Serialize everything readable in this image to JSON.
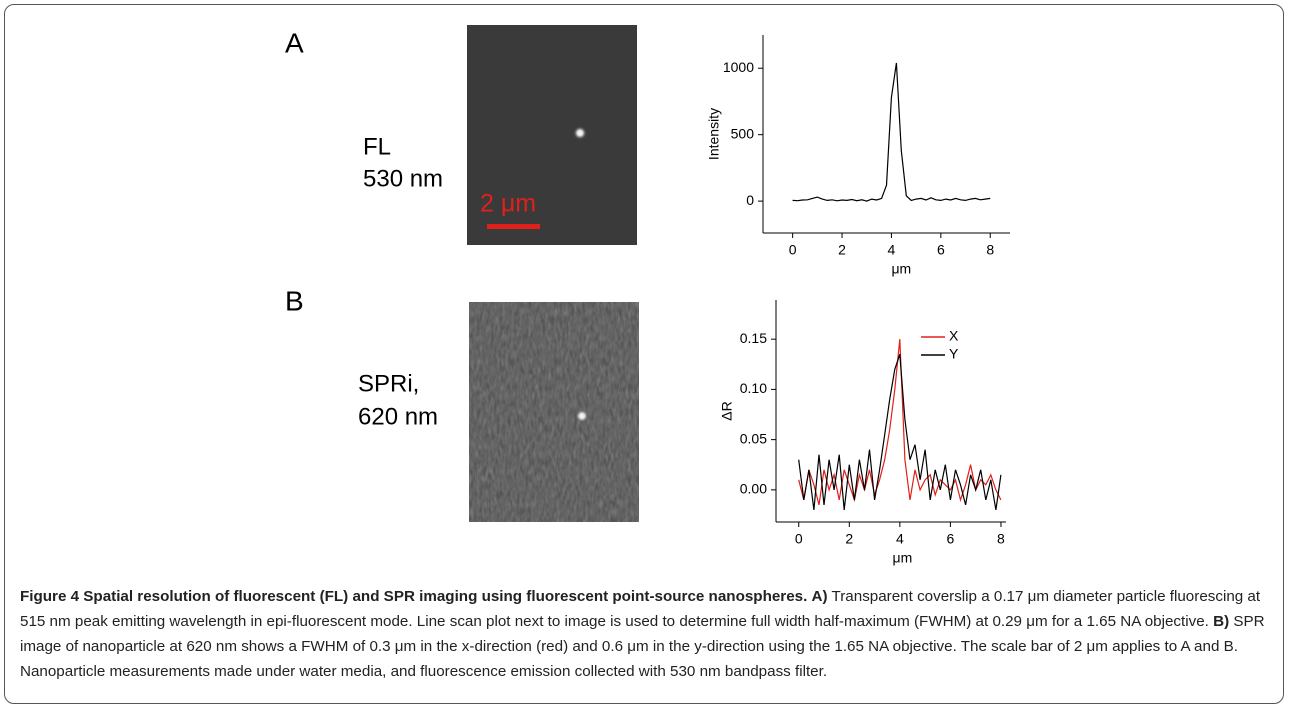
{
  "panels": [
    {
      "label": "A",
      "image_caption": [
        "FL",
        "530 nm"
      ],
      "scale_bar": "2 μm"
    },
    {
      "label": "B",
      "image_caption": [
        "SPRi,",
        "620 nm"
      ]
    }
  ],
  "chart_data": [
    {
      "type": "line",
      "color": "#000000",
      "xlabel": "μm",
      "ylabel": "Intensity",
      "x": [
        0,
        0.2,
        0.4,
        0.6,
        0.8,
        1.0,
        1.2,
        1.4,
        1.6,
        1.8,
        2.0,
        2.2,
        2.4,
        2.6,
        2.8,
        3.0,
        3.2,
        3.4,
        3.6,
        3.8,
        4.0,
        4.2,
        4.4,
        4.6,
        4.8,
        5.0,
        5.2,
        5.4,
        5.6,
        5.8,
        6.0,
        6.2,
        6.4,
        6.6,
        6.8,
        7.0,
        7.2,
        7.4,
        7.6,
        7.8,
        8.0
      ],
      "values": [
        5,
        3,
        8,
        10,
        20,
        30,
        15,
        5,
        10,
        2,
        8,
        5,
        12,
        3,
        10,
        0,
        15,
        8,
        20,
        120,
        780,
        1040,
        380,
        40,
        5,
        15,
        20,
        8,
        25,
        10,
        5,
        15,
        8,
        20,
        10,
        5,
        15,
        20,
        10,
        15,
        20
      ],
      "xlim": [
        -1.2,
        8.8
      ],
      "ylim": [
        -240,
        1250
      ],
      "xticks": [
        0,
        2,
        4,
        6,
        8
      ],
      "yticks": [
        0,
        500,
        1000
      ]
    },
    {
      "type": "line",
      "xlabel": "μm",
      "ylabel": "ΔR",
      "legend": "upper right",
      "x": [
        0,
        0.2,
        0.4,
        0.6,
        0.8,
        1.0,
        1.2,
        1.4,
        1.6,
        1.8,
        2.0,
        2.2,
        2.4,
        2.6,
        2.8,
        3.0,
        3.2,
        3.4,
        3.6,
        3.8,
        4.0,
        4.2,
        4.4,
        4.6,
        4.8,
        5.0,
        5.2,
        5.4,
        5.6,
        5.8,
        6.0,
        6.2,
        6.4,
        6.6,
        6.8,
        7.0,
        7.2,
        7.4,
        7.6,
        7.8,
        8.0
      ],
      "series": [
        {
          "name": "X",
          "color": "#e0201b",
          "values": [
            0.01,
            -0.01,
            0.02,
            0.005,
            -0.015,
            0.02,
            0.0,
            0.015,
            -0.01,
            0.02,
            0.005,
            -0.01,
            0.015,
            0.0,
            0.02,
            -0.005,
            0.01,
            0.03,
            0.06,
            0.1,
            0.15,
            0.03,
            -0.01,
            0.02,
            0.0,
            0.01,
            0.015,
            -0.005,
            0.01,
            0.005,
            0.0,
            0.01,
            -0.01,
            0.005,
            0.025,
            0.0,
            0.01,
            0.005,
            0.015,
            0.0,
            -0.01
          ]
        },
        {
          "name": "Y",
          "color": "#000000",
          "values": [
            0.03,
            -0.01,
            0.02,
            -0.02,
            0.035,
            -0.015,
            0.03,
            0.0,
            0.035,
            -0.02,
            0.025,
            -0.01,
            0.03,
            0.0,
            0.04,
            -0.01,
            0.02,
            0.055,
            0.09,
            0.12,
            0.135,
            0.07,
            0.03,
            0.045,
            0.01,
            0.04,
            -0.01,
            0.02,
            0.0,
            0.025,
            -0.01,
            0.02,
            0.005,
            -0.015,
            0.015,
            0.0,
            0.02,
            -0.01,
            0.01,
            -0.02,
            0.015
          ]
        }
      ],
      "xlim": [
        -0.9,
        8.2
      ],
      "ylim": [
        -0.032,
        0.189
      ],
      "xticks": [
        0,
        2,
        4,
        6,
        8
      ],
      "yticks": [
        {
          "value": 0,
          "label": "0.00"
        },
        {
          "value": 0.05,
          "label": "0.05"
        },
        {
          "value": 0.1,
          "label": "0.10"
        },
        {
          "value": 0.15,
          "label": "0.15"
        }
      ]
    }
  ],
  "caption": {
    "title": "Figure 4 Spatial resolution of fluorescent (FL) and SPR imaging using fluorescent point-source nanospheres.",
    "parts": [
      {
        "label": "A)",
        "text": "Transparent coverslip a 0.17 μm diameter particle fluorescing at 515 nm peak emitting wavelength in epi-fluorescent mode. Line scan plot next to image is used to determine full width half-maximum (FWHM) at 0.29 μm for a 1.65 NA objective."
      },
      {
        "label": "B)",
        "text": "SPR image of nanoparticle at 620 nm shows a FWHM of 0.3 μm in the x-direction (red) and 0.6 μm in the y-direction using the 1.65 NA objective. The scale bar of 2 μm applies to A and B. Nanoparticle measurements made under water media, and fluorescence emission collected with 530 nm bandpass filter."
      }
    ]
  }
}
